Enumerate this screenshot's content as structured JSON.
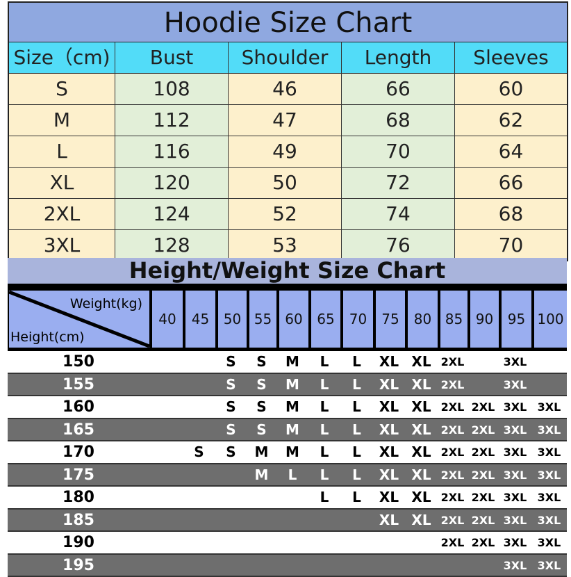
{
  "hoodie": {
    "title": "Hoodie Size Chart",
    "headers": [
      "Size（cm)",
      "Bust",
      "Shoulder",
      "Length",
      "Sleeves"
    ],
    "rows": [
      [
        "S",
        "108",
        "46",
        "66",
        "60"
      ],
      [
        "M",
        "112",
        "47",
        "68",
        "62"
      ],
      [
        "L",
        "116",
        "49",
        "70",
        "64"
      ],
      [
        "XL",
        "120",
        "50",
        "72",
        "66"
      ],
      [
        "2XL",
        "124",
        "52",
        "74",
        "68"
      ],
      [
        "3XL",
        "128",
        "53",
        "76",
        "70"
      ]
    ],
    "colors": {
      "title": "#8fa8e0",
      "header": "#52dcf8",
      "yellow": "#fdf0cc",
      "green": "#e2efd8"
    }
  },
  "height_weight": {
    "title": "Height/Weight Size Chart",
    "weight_label": "Weight(kg)",
    "height_label": "Height(cm)",
    "weights": [
      "40",
      "45",
      "50",
      "55",
      "60",
      "65",
      "70",
      "75",
      "80",
      "85",
      "90",
      "95",
      "100"
    ],
    "rows": [
      {
        "height": "150",
        "sizes": [
          "",
          "",
          "S",
          "S",
          "M",
          "L",
          "L",
          "XL",
          "XL",
          "2XL",
          "",
          "3XL",
          ""
        ]
      },
      {
        "height": "155",
        "sizes": [
          "",
          "",
          "S",
          "S",
          "M",
          "L",
          "L",
          "XL",
          "XL",
          "2XL",
          "",
          "3XL",
          ""
        ]
      },
      {
        "height": "160",
        "sizes": [
          "",
          "",
          "S",
          "S",
          "M",
          "L",
          "L",
          "XL",
          "XL",
          "2XL",
          "2XL",
          "3XL",
          "3XL"
        ]
      },
      {
        "height": "165",
        "sizes": [
          "",
          "",
          "S",
          "S",
          "M",
          "L",
          "L",
          "XL",
          "XL",
          "2XL",
          "2XL",
          "3XL",
          "3XL"
        ]
      },
      {
        "height": "170",
        "sizes": [
          "",
          "S",
          "S",
          "M",
          "M",
          "L",
          "L",
          "XL",
          "XL",
          "2XL",
          "2XL",
          "3XL",
          "3XL"
        ]
      },
      {
        "height": "175",
        "sizes": [
          "",
          "",
          "",
          "M",
          "L",
          "L",
          "L",
          "XL",
          "XL",
          "2XL",
          "2XL",
          "3XL",
          "3XL"
        ]
      },
      {
        "height": "180",
        "sizes": [
          "",
          "",
          "",
          "",
          "",
          "L",
          "L",
          "XL",
          "XL",
          "2XL",
          "2XL",
          "3XL",
          "3XL"
        ]
      },
      {
        "height": "185",
        "sizes": [
          "",
          "",
          "",
          "",
          "",
          "",
          "",
          "XL",
          "XL",
          "2XL",
          "2XL",
          "3XL",
          "3XL"
        ]
      },
      {
        "height": "190",
        "sizes": [
          "",
          "",
          "",
          "",
          "",
          "",
          "",
          "",
          "",
          "2XL",
          "2XL",
          "3XL",
          "3XL"
        ]
      },
      {
        "height": "195",
        "sizes": [
          "",
          "",
          "",
          "",
          "",
          "",
          "",
          "",
          "",
          "",
          "",
          "3XL",
          "3XL"
        ]
      }
    ],
    "colors": {
      "title": "#a9b4dc",
      "header": "#9aaef0",
      "dark_row": "#6e6e6e"
    }
  }
}
